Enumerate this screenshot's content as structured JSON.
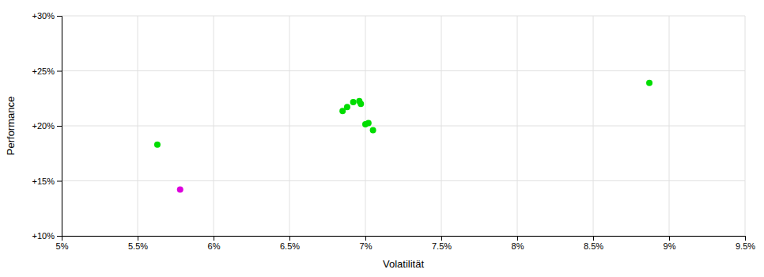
{
  "chart_data": {
    "type": "scatter",
    "x_label": "Volatilität",
    "y_label": "Performance",
    "xlim": [
      0.05,
      0.095
    ],
    "ylim": [
      0.1,
      0.3
    ],
    "xticks": [
      {
        "value": 0.05,
        "label": "5%"
      },
      {
        "value": 0.055,
        "label": "5.5%"
      },
      {
        "value": 0.06,
        "label": "6%"
      },
      {
        "value": 0.065,
        "label": "6.5%"
      },
      {
        "value": 0.07,
        "label": "7%"
      },
      {
        "value": 0.075,
        "label": "7.5%"
      },
      {
        "value": 0.08,
        "label": "8%"
      },
      {
        "value": 0.085,
        "label": "8.5%"
      },
      {
        "value": 0.09,
        "label": "9%"
      },
      {
        "value": 0.095,
        "label": "9.5%"
      }
    ],
    "yticks": [
      {
        "value": 0.1,
        "label": "+10%"
      },
      {
        "value": 0.15,
        "label": "+15%"
      },
      {
        "value": 0.2,
        "label": "+20%"
      },
      {
        "value": 0.25,
        "label": "+25%"
      },
      {
        "value": 0.3,
        "label": "+30%"
      }
    ],
    "grid": true,
    "series": [
      {
        "color": "#00dd00",
        "x": [
          0.0563,
          0.0685,
          0.0688,
          0.0692,
          0.0696,
          0.0697,
          0.07,
          0.0702,
          0.0705,
          0.0887
        ],
        "values": [
          0.183,
          0.2135,
          0.217,
          0.2215,
          0.2225,
          0.22,
          0.2015,
          0.2025,
          0.196,
          0.239
        ]
      },
      {
        "color": "#dd00dd",
        "x": [
          0.0578
        ],
        "values": [
          0.142
        ]
      }
    ]
  }
}
